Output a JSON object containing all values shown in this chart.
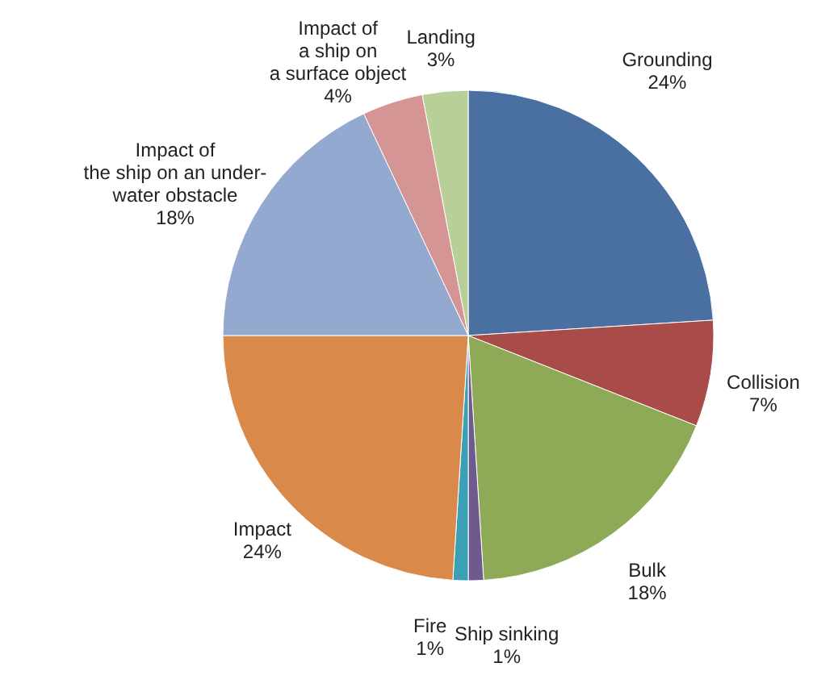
{
  "chart_data": {
    "type": "pie",
    "categories": [
      "Grounding",
      "Collision",
      "Bulk",
      "Ship sinking",
      "Fire",
      "Impact",
      "Impact of\nthe ship on an under-\nwater obstacle",
      "Impact of\na ship on\na surface object",
      "Landing"
    ],
    "values": [
      24,
      7,
      18,
      1,
      1,
      24,
      18,
      4,
      3
    ],
    "colors": [
      "#4a70a2",
      "#a84b49",
      "#8eaa56",
      "#6e5a8e",
      "#3b9fb6",
      "#d9894a",
      "#94a9cf",
      "#d49594",
      "#b9cf98"
    ],
    "value_labels": [
      "24%",
      "7%",
      "18%",
      "1%",
      "1%",
      "24%",
      "18%",
      "4%",
      "3%"
    ]
  }
}
